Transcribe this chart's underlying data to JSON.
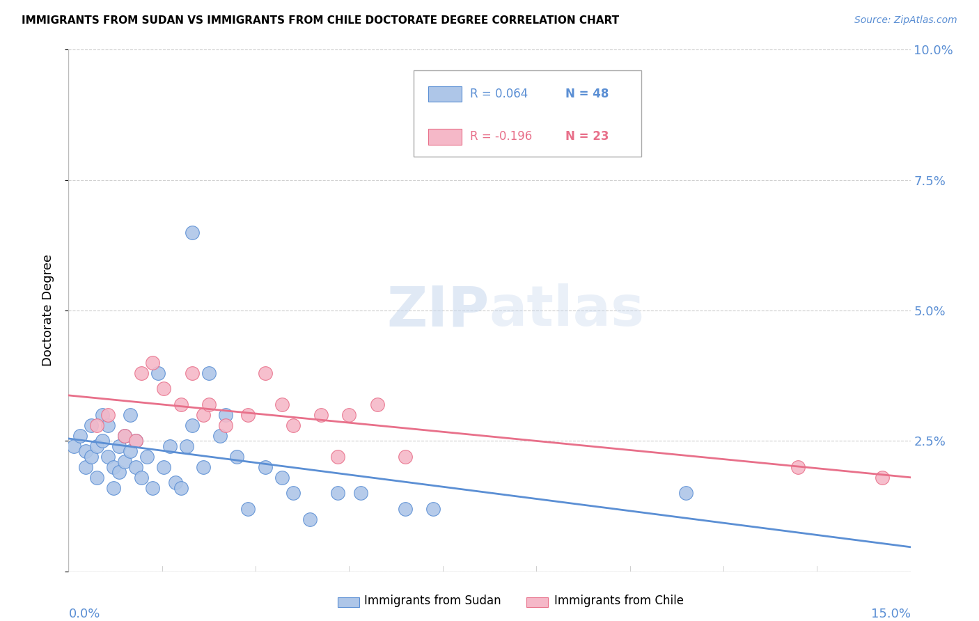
{
  "title": "IMMIGRANTS FROM SUDAN VS IMMIGRANTS FROM CHILE DOCTORATE DEGREE CORRELATION CHART",
  "source": "Source: ZipAtlas.com",
  "ylabel": "Doctorate Degree",
  "ytick_values": [
    0.0,
    0.025,
    0.05,
    0.075,
    0.1
  ],
  "ytick_labels": [
    "",
    "2.5%",
    "5.0%",
    "7.5%",
    "10.0%"
  ],
  "xlim": [
    0.0,
    0.15
  ],
  "ylim": [
    0.0,
    0.1
  ],
  "sudan_color": "#aec6e8",
  "chile_color": "#f5b8c8",
  "sudan_line_color": "#5b8fd4",
  "chile_line_color": "#e8708a",
  "watermark_color": "#dde8f5",
  "sudan_x": [
    0.001,
    0.002,
    0.003,
    0.003,
    0.004,
    0.004,
    0.005,
    0.005,
    0.006,
    0.006,
    0.007,
    0.007,
    0.008,
    0.008,
    0.009,
    0.009,
    0.01,
    0.01,
    0.011,
    0.011,
    0.012,
    0.012,
    0.013,
    0.014,
    0.015,
    0.016,
    0.017,
    0.018,
    0.019,
    0.02,
    0.021,
    0.022,
    0.024,
    0.025,
    0.027,
    0.028,
    0.03,
    0.032,
    0.035,
    0.038,
    0.04,
    0.043,
    0.048,
    0.052,
    0.06,
    0.065,
    0.11,
    0.022
  ],
  "sudan_y": [
    0.024,
    0.026,
    0.023,
    0.02,
    0.022,
    0.028,
    0.024,
    0.018,
    0.025,
    0.03,
    0.022,
    0.028,
    0.02,
    0.016,
    0.024,
    0.019,
    0.026,
    0.021,
    0.03,
    0.023,
    0.025,
    0.02,
    0.018,
    0.022,
    0.016,
    0.038,
    0.02,
    0.024,
    0.017,
    0.016,
    0.024,
    0.028,
    0.02,
    0.038,
    0.026,
    0.03,
    0.022,
    0.012,
    0.02,
    0.018,
    0.015,
    0.01,
    0.015,
    0.015,
    0.012,
    0.012,
    0.015,
    0.065
  ],
  "chile_x": [
    0.005,
    0.007,
    0.01,
    0.012,
    0.013,
    0.015,
    0.017,
    0.02,
    0.022,
    0.024,
    0.025,
    0.028,
    0.032,
    0.035,
    0.038,
    0.04,
    0.045,
    0.048,
    0.05,
    0.055,
    0.06,
    0.13,
    0.145
  ],
  "chile_y": [
    0.028,
    0.03,
    0.026,
    0.025,
    0.038,
    0.04,
    0.035,
    0.032,
    0.038,
    0.03,
    0.032,
    0.028,
    0.03,
    0.038,
    0.032,
    0.028,
    0.03,
    0.022,
    0.03,
    0.032,
    0.022,
    0.02,
    0.018
  ]
}
